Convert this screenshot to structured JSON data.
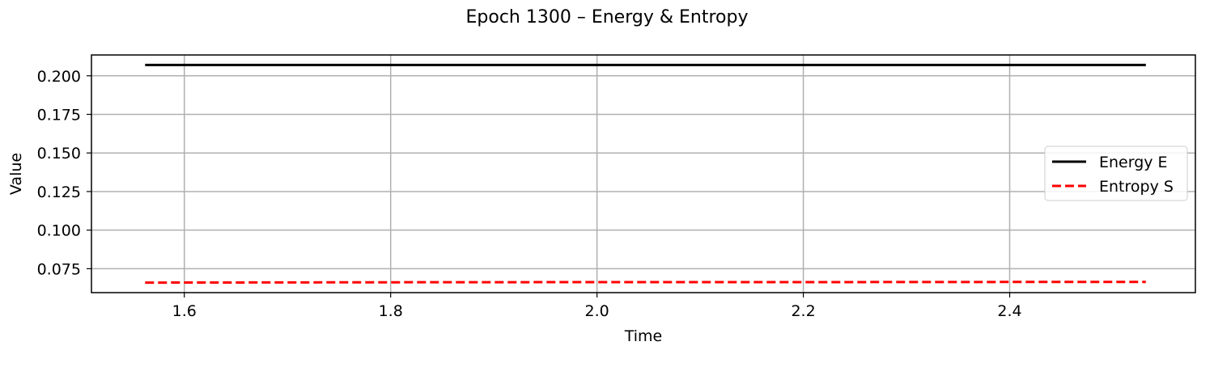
{
  "chart_data": {
    "type": "line",
    "title": "Epoch 1300 – Energy & Entropy",
    "xlabel": "Time",
    "ylabel": "Value",
    "xlim": [
      1.51,
      2.58
    ],
    "ylim": [
      0.0595,
      0.2135
    ],
    "xticks": [
      {
        "value": 1.6,
        "label": "1.6"
      },
      {
        "value": 1.8,
        "label": "1.8"
      },
      {
        "value": 2.0,
        "label": "2.0"
      },
      {
        "value": 2.2,
        "label": "2.2"
      },
      {
        "value": 2.4,
        "label": "2.4"
      }
    ],
    "yticks": [
      {
        "value": 0.075,
        "label": "0.075"
      },
      {
        "value": 0.1,
        "label": "0.100"
      },
      {
        "value": 0.125,
        "label": "0.125"
      },
      {
        "value": 0.15,
        "label": "0.150"
      },
      {
        "value": 0.175,
        "label": "0.175"
      },
      {
        "value": 0.2,
        "label": "0.200"
      }
    ],
    "grid": true,
    "legend_position": "center-right",
    "series": [
      {
        "name": "Energy E",
        "color": "#000000",
        "style": "solid",
        "x": [
          1.562,
          2.532
        ],
        "y": [
          0.207,
          0.207
        ]
      },
      {
        "name": "Entropy S",
        "color": "#ff0000",
        "style": "dashed",
        "x": [
          1.562,
          1.8,
          2.0,
          2.2,
          2.4,
          2.532
        ],
        "y": [
          0.066,
          0.0662,
          0.0663,
          0.0663,
          0.0664,
          0.0664
        ]
      }
    ]
  }
}
